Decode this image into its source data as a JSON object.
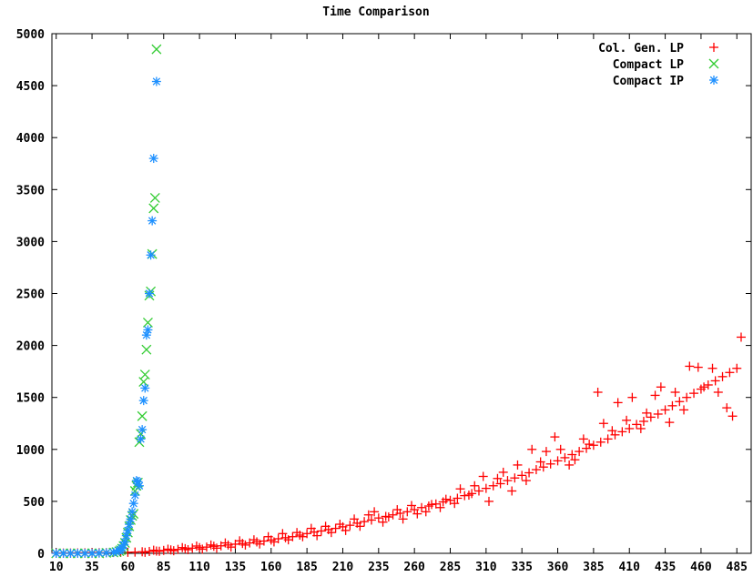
{
  "chart_data": {
    "type": "scatter",
    "title": "Time Comparison",
    "xlabel": "",
    "ylabel": "",
    "xlim": [
      7,
      495
    ],
    "ylim": [
      0,
      5000
    ],
    "x_ticks": [
      10,
      35,
      60,
      85,
      110,
      135,
      160,
      185,
      210,
      235,
      260,
      285,
      310,
      335,
      360,
      385,
      410,
      435,
      460,
      485
    ],
    "y_ticks": [
      0,
      500,
      1000,
      1500,
      2000,
      2500,
      3000,
      3500,
      4000,
      4500,
      5000
    ],
    "grid": false,
    "legend_position": "top-right",
    "series": [
      {
        "name": "Col. Gen. LP",
        "marker": "plus",
        "color": "#ff0000",
        "points": [
          [
            10,
            2
          ],
          [
            15,
            3
          ],
          [
            20,
            3
          ],
          [
            25,
            4
          ],
          [
            30,
            5
          ],
          [
            35,
            6
          ],
          [
            40,
            6
          ],
          [
            45,
            7
          ],
          [
            50,
            8
          ],
          [
            55,
            9
          ],
          [
            60,
            10
          ],
          [
            65,
            12
          ],
          [
            70,
            15
          ],
          [
            75,
            18
          ],
          [
            80,
            22
          ],
          [
            85,
            28
          ],
          [
            90,
            33
          ],
          [
            95,
            38
          ],
          [
            100,
            45
          ],
          [
            105,
            50
          ],
          [
            110,
            55
          ],
          [
            115,
            60
          ],
          [
            120,
            68
          ],
          [
            125,
            72
          ],
          [
            130,
            80
          ],
          [
            135,
            88
          ],
          [
            140,
            95
          ],
          [
            145,
            100
          ],
          [
            150,
            110
          ],
          [
            155,
            118
          ],
          [
            160,
            128
          ],
          [
            165,
            140
          ],
          [
            170,
            150
          ],
          [
            175,
            160
          ],
          [
            180,
            175
          ],
          [
            185,
            190
          ],
          [
            190,
            205
          ],
          [
            195,
            215
          ],
          [
            200,
            228
          ],
          [
            205,
            240
          ],
          [
            210,
            255
          ],
          [
            215,
            270
          ],
          [
            220,
            290
          ],
          [
            225,
            305
          ],
          [
            230,
            320
          ],
          [
            235,
            340
          ],
          [
            240,
            355
          ],
          [
            245,
            370
          ],
          [
            250,
            385
          ],
          [
            255,
            400
          ],
          [
            260,
            420
          ],
          [
            265,
            440
          ],
          [
            270,
            455
          ],
          [
            275,
            475
          ],
          [
            280,
            495
          ],
          [
            285,
            510
          ],
          [
            290,
            530
          ],
          [
            295,
            555
          ],
          [
            300,
            575
          ],
          [
            305,
            600
          ],
          [
            310,
            625
          ],
          [
            315,
            650
          ],
          [
            320,
            670
          ],
          [
            325,
            700
          ],
          [
            330,
            725
          ],
          [
            335,
            750
          ],
          [
            340,
            775
          ],
          [
            345,
            805
          ],
          [
            350,
            830
          ],
          [
            355,
            860
          ],
          [
            360,
            890
          ],
          [
            365,
            920
          ],
          [
            370,
            950
          ],
          [
            375,
            980
          ],
          [
            380,
            1010
          ],
          [
            385,
            1040
          ],
          [
            390,
            1070
          ],
          [
            395,
            1100
          ],
          [
            400,
            1140
          ],
          [
            405,
            1170
          ],
          [
            410,
            1200
          ],
          [
            415,
            1240
          ],
          [
            420,
            1270
          ],
          [
            425,
            1310
          ],
          [
            430,
            1340
          ],
          [
            435,
            1380
          ],
          [
            440,
            1420
          ],
          [
            445,
            1460
          ],
          [
            450,
            1500
          ],
          [
            455,
            1540
          ],
          [
            460,
            1580
          ],
          [
            465,
            1620
          ],
          [
            470,
            1660
          ],
          [
            475,
            1700
          ],
          [
            480,
            1740
          ],
          [
            485,
            1780
          ],
          [
            488,
            2080
          ],
          [
            482,
            1320
          ],
          [
            478,
            1400
          ],
          [
            472,
            1550
          ],
          [
            468,
            1780
          ],
          [
            462,
            1600
          ],
          [
            458,
            1790
          ],
          [
            452,
            1800
          ],
          [
            448,
            1380
          ],
          [
            442,
            1550
          ],
          [
            438,
            1260
          ],
          [
            432,
            1600
          ],
          [
            428,
            1520
          ],
          [
            422,
            1350
          ],
          [
            418,
            1200
          ],
          [
            412,
            1500
          ],
          [
            408,
            1280
          ],
          [
            402,
            1450
          ],
          [
            398,
            1180
          ],
          [
            392,
            1250
          ],
          [
            388,
            1550
          ],
          [
            382,
            1050
          ],
          [
            378,
            1100
          ],
          [
            372,
            900
          ],
          [
            368,
            850
          ],
          [
            362,
            1000
          ],
          [
            358,
            1120
          ],
          [
            352,
            980
          ],
          [
            348,
            880
          ],
          [
            342,
            1000
          ],
          [
            338,
            700
          ],
          [
            332,
            850
          ],
          [
            328,
            600
          ],
          [
            322,
            780
          ],
          [
            318,
            720
          ],
          [
            312,
            500
          ],
          [
            308,
            740
          ],
          [
            302,
            650
          ],
          [
            298,
            560
          ],
          [
            292,
            620
          ],
          [
            288,
            480
          ],
          [
            282,
            520
          ],
          [
            278,
            440
          ],
          [
            272,
            470
          ],
          [
            268,
            400
          ],
          [
            262,
            380
          ],
          [
            258,
            460
          ],
          [
            252,
            330
          ],
          [
            248,
            420
          ],
          [
            242,
            350
          ],
          [
            238,
            300
          ],
          [
            232,
            400
          ],
          [
            228,
            370
          ],
          [
            222,
            260
          ],
          [
            218,
            330
          ],
          [
            212,
            220
          ],
          [
            208,
            280
          ],
          [
            202,
            200
          ],
          [
            198,
            260
          ],
          [
            192,
            170
          ],
          [
            188,
            240
          ],
          [
            182,
            160
          ],
          [
            178,
            200
          ],
          [
            172,
            130
          ],
          [
            168,
            190
          ],
          [
            162,
            110
          ],
          [
            158,
            160
          ],
          [
            152,
            90
          ],
          [
            148,
            130
          ],
          [
            142,
            80
          ],
          [
            138,
            120
          ],
          [
            132,
            60
          ],
          [
            128,
            100
          ],
          [
            122,
            50
          ],
          [
            118,
            80
          ],
          [
            112,
            40
          ],
          [
            108,
            70
          ],
          [
            102,
            35
          ],
          [
            98,
            55
          ],
          [
            92,
            25
          ],
          [
            88,
            40
          ],
          [
            82,
            20
          ],
          [
            78,
            30
          ],
          [
            72,
            10
          ]
        ]
      },
      {
        "name": "Compact LP",
        "marker": "x",
        "color": "#33cc33",
        "points": [
          [
            10,
            0
          ],
          [
            15,
            0
          ],
          [
            20,
            0
          ],
          [
            25,
            0
          ],
          [
            30,
            0
          ],
          [
            35,
            0
          ],
          [
            40,
            0
          ],
          [
            45,
            5
          ],
          [
            50,
            8
          ],
          [
            52,
            12
          ],
          [
            54,
            20
          ],
          [
            55,
            30
          ],
          [
            56,
            45
          ],
          [
            57,
            70
          ],
          [
            58,
            100
          ],
          [
            59,
            150
          ],
          [
            60,
            200
          ],
          [
            61,
            260
          ],
          [
            62,
            320
          ],
          [
            63,
            360
          ],
          [
            64,
            380
          ],
          [
            65,
            600
          ],
          [
            66,
            650
          ],
          [
            67,
            680
          ],
          [
            68,
            1070
          ],
          [
            69,
            1150
          ],
          [
            70,
            1320
          ],
          [
            71,
            1650
          ],
          [
            72,
            1720
          ],
          [
            73,
            1960
          ],
          [
            74,
            2220
          ],
          [
            75,
            2480
          ],
          [
            76,
            2520
          ],
          [
            77,
            2880
          ],
          [
            78,
            3320
          ],
          [
            79,
            3420
          ],
          [
            80,
            4850
          ]
        ]
      },
      {
        "name": "Compact IP",
        "marker": "star",
        "color": "#1e90ff",
        "points": [
          [
            10,
            0
          ],
          [
            15,
            0
          ],
          [
            20,
            0
          ],
          [
            25,
            0
          ],
          [
            30,
            0
          ],
          [
            35,
            0
          ],
          [
            40,
            2
          ],
          [
            45,
            5
          ],
          [
            50,
            10
          ],
          [
            52,
            15
          ],
          [
            54,
            25
          ],
          [
            55,
            35
          ],
          [
            56,
            50
          ],
          [
            57,
            80
          ],
          [
            58,
            110
          ],
          [
            59,
            170
          ],
          [
            60,
            220
          ],
          [
            61,
            280
          ],
          [
            62,
            330
          ],
          [
            63,
            400
          ],
          [
            64,
            480
          ],
          [
            65,
            560
          ],
          [
            66,
            700
          ],
          [
            67,
            690
          ],
          [
            68,
            650
          ],
          [
            69,
            1100
          ],
          [
            70,
            1190
          ],
          [
            71,
            1470
          ],
          [
            72,
            1590
          ],
          [
            73,
            2100
          ],
          [
            74,
            2150
          ],
          [
            75,
            2500
          ],
          [
            76,
            2870
          ],
          [
            77,
            3200
          ],
          [
            78,
            3800
          ],
          [
            80,
            4540
          ]
        ]
      }
    ]
  }
}
